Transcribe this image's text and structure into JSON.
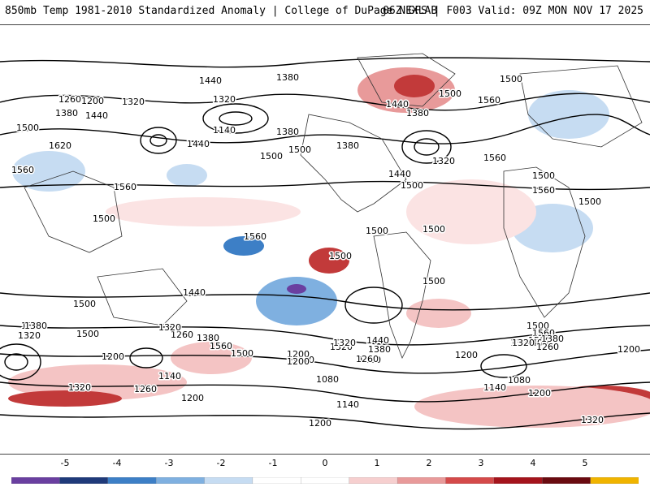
{
  "header": {
    "title": "850mb Temp 1981-2010 Standardized Anomaly | College of DuPage NEXLAB",
    "run_info": "06Z GFS | F003 Valid: 09Z MON NOV 17 2025"
  },
  "colorbar": {
    "ticks": [
      "-5",
      "-4",
      "-3",
      "-2",
      "-1",
      "0",
      "1",
      "2",
      "3",
      "4",
      "5"
    ],
    "colors": [
      "#6a3fa0",
      "#1f3a7a",
      "#3d7fc6",
      "#7fb0e0",
      "#c6dcf2",
      "#ffffff",
      "#ffffff",
      "#f6cfcf",
      "#e89a9a",
      "#d44a4a",
      "#a4141c",
      "#6a0b10",
      "#f0b400"
    ]
  },
  "contour_labels": [
    "1440",
    "1380",
    "1260",
    "1320",
    "1200",
    "1380",
    "1440",
    "1500",
    "1620",
    "1560",
    "1140",
    "1320",
    "1380",
    "1440",
    "1500",
    "1500",
    "1560",
    "1500",
    "1440",
    "1380",
    "1500",
    "1560",
    "1440",
    "1320",
    "1500",
    "1380",
    "1500",
    "1560",
    "1500",
    "1560",
    "1500",
    "1500",
    "1560",
    "1500",
    "1500",
    "1440",
    "1500",
    "1380",
    "1320",
    "1500",
    "1260",
    "1320",
    "1380",
    "1560",
    "1500",
    "1200",
    "1140",
    "1320",
    "1380",
    "1260",
    "1440",
    "1500",
    "1560",
    "1500",
    "1440",
    "1380",
    "1320",
    "1260",
    "1200",
    "1200",
    "1140",
    "1260",
    "1320",
    "1200",
    "1080",
    "1140",
    "1080",
    "1140",
    "1200",
    "1320",
    "1200",
    "1260",
    "1200",
    "1320",
    "1200",
    "1500",
    "1380",
    "1320"
  ]
}
